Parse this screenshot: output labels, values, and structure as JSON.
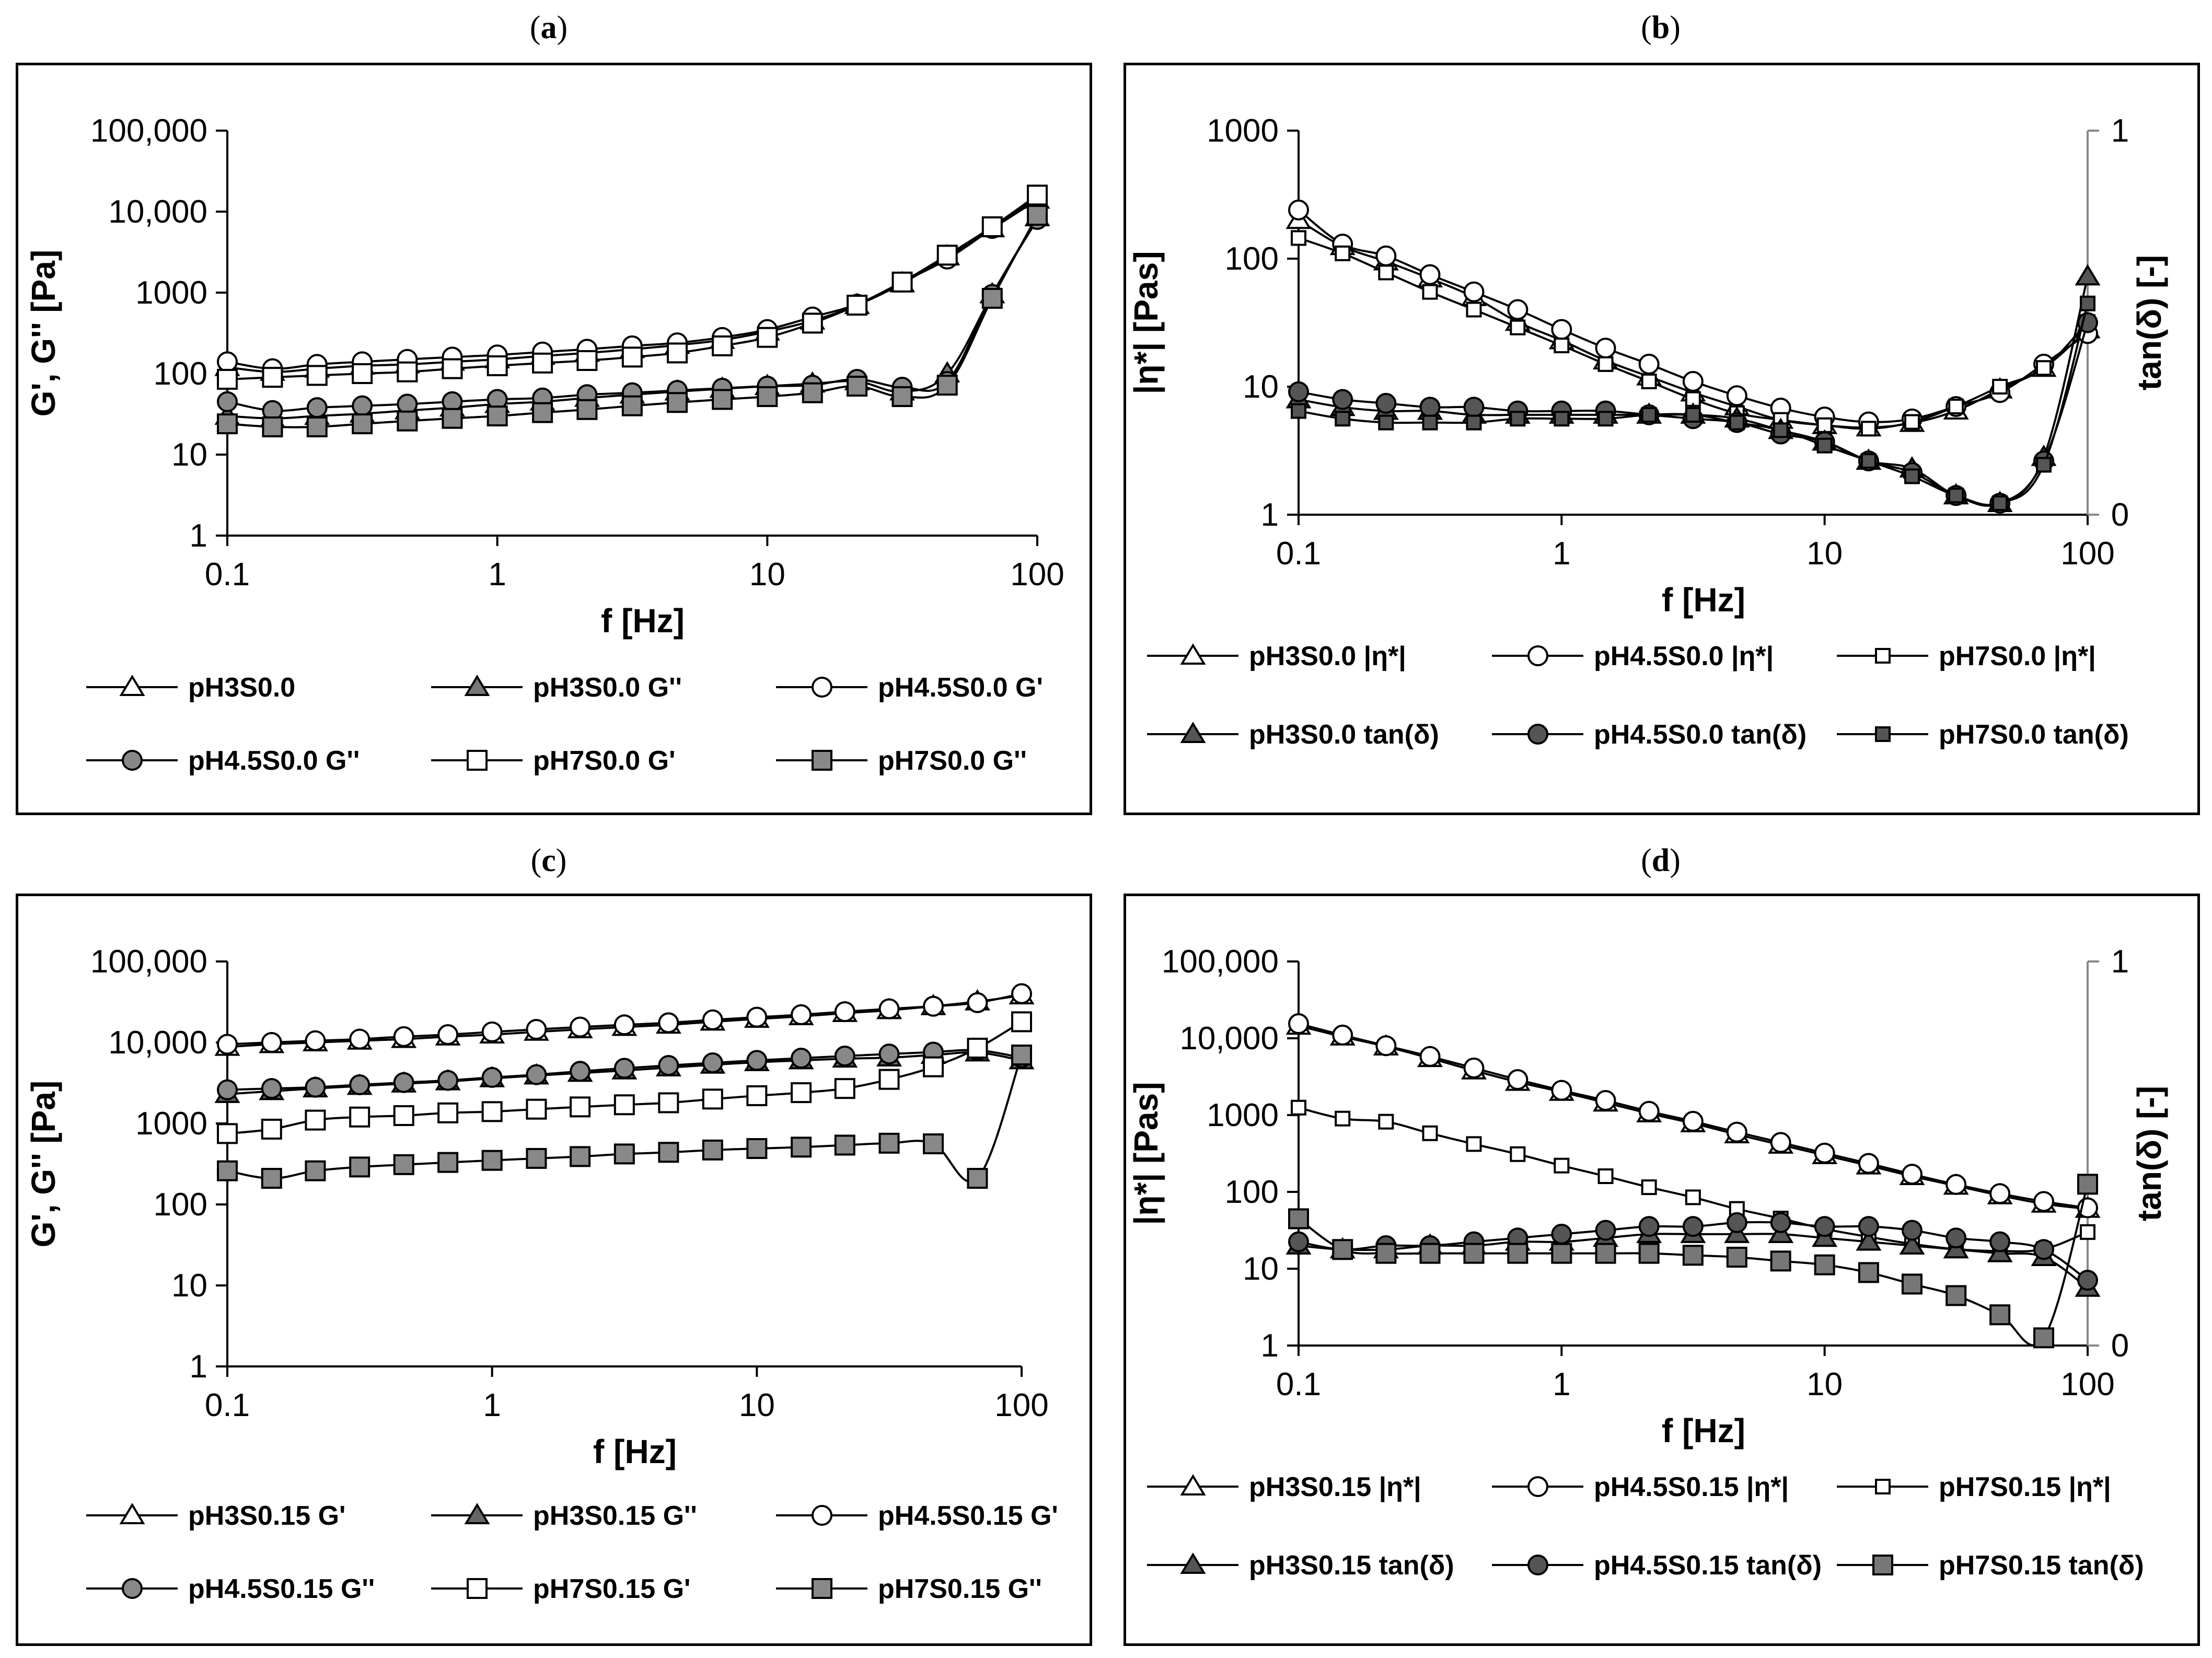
{
  "labels": {
    "a": "a",
    "b": "b",
    "c": "c",
    "d": "d"
  },
  "chart_data": [
    {
      "id": "a",
      "type": "line",
      "xscale": "log",
      "yscale": "log",
      "xlabel": "f [Hz]",
      "ylabel": "G', G'' [Pa]",
      "xlim": [
        0.1,
        100
      ],
      "ylim": [
        1,
        100000
      ],
      "xticks": [
        {
          "v": 0.1,
          "label": "0.1"
        },
        {
          "v": 1,
          "label": "1"
        },
        {
          "v": 10,
          "label": "10"
        },
        {
          "v": 100,
          "label": "100"
        }
      ],
      "yticks": [
        {
          "v": 1,
          "label": "1"
        },
        {
          "v": 10,
          "label": "10"
        },
        {
          "v": 100,
          "label": "100"
        },
        {
          "v": 1000,
          "label": "1000"
        },
        {
          "v": 10000,
          "label": "10,000"
        },
        {
          "v": 100000,
          "label": "100,000"
        }
      ],
      "x": [
        0.1,
        0.147,
        0.215,
        0.316,
        0.464,
        0.681,
        1,
        1.47,
        2.15,
        3.16,
        4.64,
        6.81,
        10,
        14.7,
        21.5,
        31.6,
        46.4,
        68.1,
        100
      ],
      "series": [
        {
          "name": "pH3S0.0",
          "marker": "triangle",
          "fill": "#ffffff",
          "values": [
            120,
            105,
            115,
            125,
            130,
            140,
            150,
            165,
            180,
            200,
            225,
            260,
            330,
            450,
            700,
            1300,
            2800,
            6200,
            14000
          ]
        },
        {
          "name": "pH3S0.0 G''",
          "marker": "triangle",
          "fill": "#777777",
          "values": [
            30,
            28,
            30,
            32,
            35,
            38,
            42,
            45,
            50,
            55,
            60,
            65,
            70,
            75,
            80,
            60,
            100,
            950,
            8500
          ]
        },
        {
          "name": "pH4.5S0.0  G'",
          "marker": "circle",
          "fill": "#ffffff",
          "values": [
            140,
            115,
            130,
            140,
            150,
            160,
            170,
            185,
            200,
            220,
            240,
            280,
            350,
            500,
            720,
            1350,
            2600,
            6200,
            15000
          ]
        },
        {
          "name": "pH4.5S0.0  G''",
          "marker": "circle",
          "fill": "#888888",
          "values": [
            45,
            35,
            38,
            40,
            42,
            45,
            48,
            50,
            55,
            58,
            62,
            66,
            70,
            72,
            85,
            68,
            80,
            950,
            8000
          ]
        },
        {
          "name": "pH7S0.0 G'",
          "marker": "square",
          "fill": "#ffffff",
          "values": [
            85,
            90,
            95,
            100,
            105,
            115,
            125,
            135,
            145,
            160,
            180,
            220,
            280,
            420,
            700,
            1350,
            2900,
            6500,
            16000
          ]
        },
        {
          "name": "pH7S0.0 G''",
          "marker": "square",
          "fill": "#888888",
          "values": [
            24,
            22,
            22,
            24,
            26,
            28,
            30,
            33,
            36,
            40,
            44,
            48,
            52,
            58,
            70,
            52,
            72,
            850,
            9000
          ]
        }
      ]
    },
    {
      "id": "b",
      "type": "line",
      "xscale": "log",
      "yscale": "log",
      "xlabel": "f [Hz]",
      "ylabel": "|η*| [Pas]",
      "ylabel2": "tan(δ) [-]",
      "xlim": [
        0.1,
        100
      ],
      "ylim": [
        1,
        1000
      ],
      "ylim2": [
        0,
        1
      ],
      "xticks": [
        {
          "v": 0.1,
          "label": "0.1"
        },
        {
          "v": 1,
          "label": "1"
        },
        {
          "v": 10,
          "label": "10"
        },
        {
          "v": 100,
          "label": "100"
        }
      ],
      "yticks": [
        {
          "v": 1,
          "label": "1"
        },
        {
          "v": 10,
          "label": "10"
        },
        {
          "v": 100,
          "label": "100"
        },
        {
          "v": 1000,
          "label": "1000"
        }
      ],
      "yticks2": [
        {
          "v": 0,
          "label": "0"
        },
        {
          "v": 1,
          "label": "1"
        }
      ],
      "x": [
        0.1,
        0.147,
        0.215,
        0.316,
        0.464,
        0.681,
        1,
        1.47,
        2.15,
        3.16,
        4.64,
        6.81,
        10,
        14.7,
        21.5,
        31.6,
        46.4,
        68.1,
        100
      ],
      "series": [
        {
          "name": "pH3S0.0  |η*|",
          "marker": "triangle",
          "fill": "#ffffff",
          "axis": "left",
          "values": [
            200,
            125,
            95,
            70,
            50,
            32,
            23,
            16,
            12,
            9,
            7,
            5.5,
            5,
            4.8,
            5.2,
            6.5,
            9.5,
            14,
            28
          ]
        },
        {
          "name": "pH4.5S0.0  |η*|",
          "marker": "circle",
          "fill": "#ffffff",
          "axis": "left",
          "values": [
            240,
            130,
            105,
            75,
            55,
            40,
            28,
            20,
            15,
            11,
            8.5,
            6.8,
            5.8,
            5.3,
            5.6,
            7,
            9,
            15,
            26
          ]
        },
        {
          "name": "pH7S0.0 |η*|",
          "marker": "square-small",
          "fill": "#ffffff",
          "axis": "left",
          "values": [
            145,
            110,
            78,
            55,
            40,
            29,
            21,
            15,
            11,
            8,
            6.2,
            5.5,
            5,
            4.7,
            5.3,
            7,
            10,
            14,
            32
          ]
        },
        {
          "name": "pH3S0.0  tan(δ)",
          "marker": "triangle",
          "fill": "#555555",
          "axis": "right",
          "values": [
            0.3,
            0.28,
            0.27,
            0.27,
            0.26,
            0.26,
            0.26,
            0.26,
            0.26,
            0.26,
            0.25,
            0.22,
            0.19,
            0.14,
            0.12,
            0.05,
            0.03,
            0.15,
            0.62
          ]
        },
        {
          "name": "pH4.5S0.0  tan(δ)",
          "marker": "circle",
          "fill": "#555555",
          "axis": "right",
          "values": [
            0.32,
            0.3,
            0.29,
            0.28,
            0.28,
            0.27,
            0.27,
            0.27,
            0.26,
            0.25,
            0.24,
            0.21,
            0.19,
            0.14,
            0.11,
            0.05,
            0.03,
            0.14,
            0.5
          ]
        },
        {
          "name": "pH7S0.0 tan(δ)",
          "marker": "square-small",
          "fill": "#555555",
          "axis": "right",
          "values": [
            0.27,
            0.25,
            0.24,
            0.24,
            0.24,
            0.25,
            0.25,
            0.25,
            0.26,
            0.26,
            0.24,
            0.22,
            0.18,
            0.14,
            0.1,
            0.05,
            0.03,
            0.13,
            0.55
          ]
        }
      ]
    },
    {
      "id": "c",
      "type": "line",
      "xscale": "log",
      "yscale": "log",
      "xlabel": "f [Hz]",
      "ylabel": "G', G'' [Pa]",
      "xlim": [
        0.1,
        100
      ],
      "ylim": [
        1,
        100000
      ],
      "xticks": [
        {
          "v": 0.1,
          "label": "0.1"
        },
        {
          "v": 1,
          "label": "1"
        },
        {
          "v": 10,
          "label": "10"
        },
        {
          "v": 100,
          "label": "100"
        }
      ],
      "yticks": [
        {
          "v": 1,
          "label": "1"
        },
        {
          "v": 10,
          "label": "10"
        },
        {
          "v": 100,
          "label": "100"
        },
        {
          "v": 1000,
          "label": "1000"
        },
        {
          "v": 10000,
          "label": "10,000"
        },
        {
          "v": 100000,
          "label": "100,000"
        }
      ],
      "x": [
        0.1,
        0.147,
        0.215,
        0.316,
        0.464,
        0.681,
        1,
        1.47,
        2.15,
        3.16,
        4.64,
        6.81,
        10,
        14.7,
        21.5,
        31.6,
        46.4,
        68.1,
        100
      ],
      "series": [
        {
          "name": "pH3S0.15 G'",
          "marker": "triangle",
          "fill": "#ffffff",
          "values": [
            8800,
            9500,
            10000,
            10500,
            11000,
            11800,
            12500,
            13500,
            14500,
            15500,
            16500,
            18000,
            19500,
            21000,
            23000,
            25000,
            28000,
            32000,
            38000
          ]
        },
        {
          "name": "pH3S0.15 G''",
          "marker": "triangle",
          "fill": "#666666",
          "values": [
            2300,
            2500,
            2700,
            2900,
            3100,
            3300,
            3600,
            3900,
            4200,
            4500,
            4900,
            5300,
            5700,
            6000,
            6300,
            6500,
            7000,
            7500,
            6000
          ]
        },
        {
          "name": "pH4.5S0.15 G'",
          "marker": "circle",
          "fill": "#ffffff",
          "values": [
            9500,
            10000,
            10500,
            11000,
            11800,
            12500,
            13500,
            14500,
            15500,
            16500,
            17500,
            19000,
            20500,
            22000,
            24000,
            26000,
            28000,
            31000,
            40000
          ]
        },
        {
          "name": "pH4.5S0.15 G''",
          "marker": "circle",
          "fill": "#888888",
          "values": [
            2600,
            2700,
            2800,
            3000,
            3200,
            3400,
            3700,
            4000,
            4400,
            4800,
            5200,
            5600,
            6000,
            6400,
            6800,
            7200,
            7600,
            8000,
            6500
          ]
        },
        {
          "name": "pH7S0.15 G'",
          "marker": "square",
          "fill": "#ffffff",
          "values": [
            750,
            850,
            1100,
            1200,
            1250,
            1350,
            1400,
            1500,
            1600,
            1700,
            1800,
            2000,
            2200,
            2400,
            2700,
            3500,
            5000,
            8500,
            18000
          ]
        },
        {
          "name": "pH7S0.15 G''",
          "marker": "square",
          "fill": "#888888",
          "values": [
            260,
            210,
            260,
            290,
            310,
            330,
            350,
            370,
            390,
            420,
            440,
            470,
            490,
            510,
            540,
            570,
            560,
            210,
            7000
          ]
        }
      ]
    },
    {
      "id": "d",
      "type": "line",
      "xscale": "log",
      "yscale": "log",
      "xlabel": "f [Hz]",
      "ylabel": "|η*| [Pas]",
      "ylabel2": "tan(δ) [-]",
      "xlim": [
        0.1,
        100
      ],
      "ylim": [
        1,
        100000
      ],
      "ylim2": [
        0,
        1
      ],
      "xticks": [
        {
          "v": 0.1,
          "label": "0.1"
        },
        {
          "v": 1,
          "label": "1"
        },
        {
          "v": 10,
          "label": "10"
        },
        {
          "v": 100,
          "label": "100"
        }
      ],
      "yticks": [
        {
          "v": 1,
          "label": "1"
        },
        {
          "v": 10,
          "label": "10"
        },
        {
          "v": 100,
          "label": "100"
        },
        {
          "v": 1000,
          "label": "1000"
        },
        {
          "v": 10000,
          "label": "10,000"
        },
        {
          "v": 100000,
          "label": "100,000"
        }
      ],
      "yticks2": [
        {
          "v": 0,
          "label": "0"
        },
        {
          "v": 1,
          "label": "1"
        }
      ],
      "x": [
        0.1,
        0.147,
        0.215,
        0.316,
        0.464,
        0.681,
        1,
        1.47,
        2.15,
        3.16,
        4.64,
        6.81,
        10,
        14.7,
        21.5,
        31.6,
        46.4,
        68.1,
        100
      ],
      "series": [
        {
          "name": "pH3S0.15 |η*|",
          "marker": "triangle",
          "fill": "#ffffff",
          "axis": "left",
          "values": [
            14500,
            10500,
            7800,
            5500,
            3800,
            2700,
            2000,
            1450,
            1050,
            780,
            560,
            410,
            300,
            220,
            160,
            120,
            90,
            70,
            60
          ]
        },
        {
          "name": "pH4.5S0.15 |η*|",
          "marker": "circle",
          "fill": "#ffffff",
          "axis": "left",
          "values": [
            15500,
            11000,
            8000,
            5800,
            4100,
            2900,
            2100,
            1550,
            1120,
            830,
            600,
            440,
            320,
            235,
            170,
            125,
            95,
            75,
            62
          ]
        },
        {
          "name": "pH7S0.15 |η*|",
          "marker": "square-small",
          "fill": "#ffffff",
          "axis": "left",
          "values": [
            1250,
            900,
            820,
            580,
            420,
            310,
            220,
            160,
            115,
            85,
            60,
            45,
            33,
            26,
            21,
            18,
            17,
            18,
            30
          ]
        },
        {
          "name": "pH3S0.15 tan(δ)",
          "marker": "triangle",
          "fill": "#555555",
          "axis": "right",
          "values": [
            0.26,
            0.25,
            0.25,
            0.26,
            0.26,
            0.27,
            0.27,
            0.28,
            0.29,
            0.29,
            0.29,
            0.29,
            0.28,
            0.27,
            0.26,
            0.25,
            0.24,
            0.23,
            0.15
          ]
        },
        {
          "name": "pH4.5S0.15 tan(δ)",
          "marker": "circle",
          "fill": "#555555",
          "axis": "right",
          "values": [
            0.27,
            0.25,
            0.26,
            0.26,
            0.27,
            0.28,
            0.29,
            0.3,
            0.31,
            0.31,
            0.32,
            0.32,
            0.31,
            0.31,
            0.3,
            0.28,
            0.27,
            0.25,
            0.17
          ]
        },
        {
          "name": "pH7S0.15 tan(δ)",
          "marker": "square",
          "fill": "#777777",
          "axis": "right",
          "values": [
            0.33,
            0.25,
            0.24,
            0.24,
            0.24,
            0.24,
            0.24,
            0.24,
            0.24,
            0.235,
            0.23,
            0.22,
            0.21,
            0.19,
            0.16,
            0.13,
            0.08,
            0.02,
            0.42
          ]
        }
      ]
    }
  ]
}
